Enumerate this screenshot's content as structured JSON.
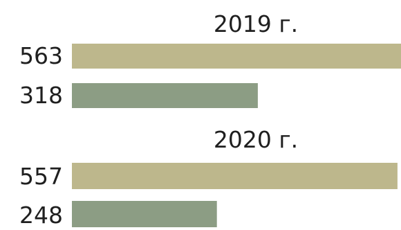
{
  "chart_data": {
    "type": "bar",
    "orientation": "horizontal",
    "groups": [
      {
        "label": "2019 г.",
        "bars": [
          {
            "value": 563,
            "label": "563",
            "color": "#bdb78c"
          },
          {
            "value": 318,
            "label": "318",
            "color": "#8c9d84"
          }
        ]
      },
      {
        "label": "2020 г.",
        "bars": [
          {
            "value": 557,
            "label": "557",
            "color": "#bdb78c"
          },
          {
            "value": 248,
            "label": "248",
            "color": "#8c9d84"
          }
        ]
      }
    ],
    "xlim": [
      0,
      563
    ],
    "grid": false,
    "legend": "none"
  }
}
